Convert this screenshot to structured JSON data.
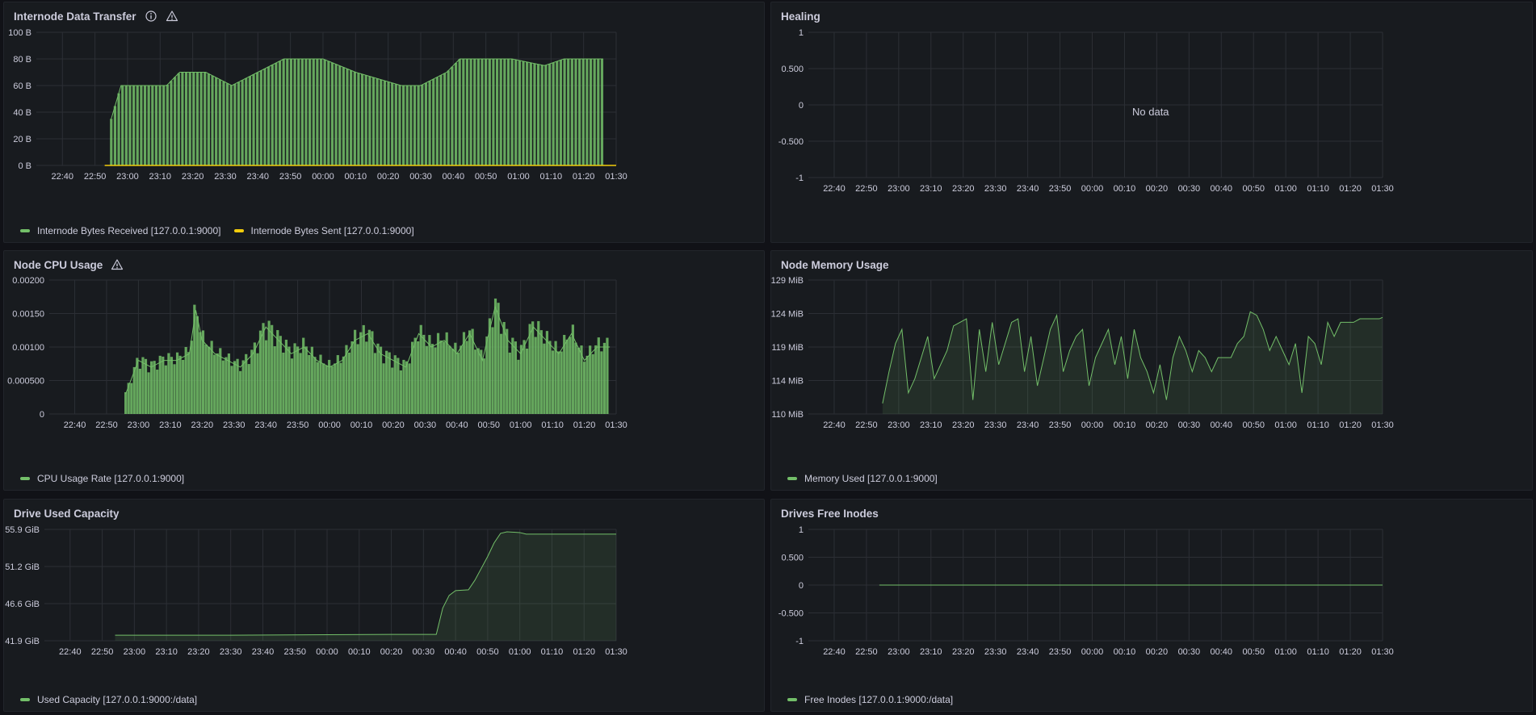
{
  "colors": {
    "received": "#73bf69",
    "sent": "#f2cc0c",
    "grid": "#2c2f35",
    "text": "#ccccdc"
  },
  "time_ticks": [
    "22:40",
    "22:50",
    "23:00",
    "23:10",
    "23:20",
    "23:30",
    "23:40",
    "23:50",
    "00:00",
    "00:10",
    "00:20",
    "00:30",
    "00:40",
    "00:50",
    "01:00",
    "01:10",
    "01:20",
    "01:30"
  ],
  "panels": {
    "transfer": {
      "title": "Internode Data Transfer",
      "icons": [
        "info-icon",
        "warning-icon"
      ],
      "legend": [
        "Internode Bytes Received [127.0.0.1:9000]",
        "Internode Bytes Sent [127.0.0.1:9000]"
      ]
    },
    "healing": {
      "title": "Healing",
      "no_data": "No data"
    },
    "cpu": {
      "title": "Node CPU Usage",
      "icons": [
        "warning-icon"
      ],
      "legend": [
        "CPU Usage Rate [127.0.0.1:9000]"
      ]
    },
    "memory": {
      "title": "Node Memory Usage",
      "legend": [
        "Memory Used [127.0.0.1:9000]"
      ]
    },
    "drive": {
      "title": "Drive Used Capacity",
      "legend": [
        "Used Capacity [127.0.0.1:9000:/data]"
      ]
    },
    "inodes": {
      "title": "Drives Free Inodes",
      "legend": [
        "Free Inodes [127.0.0.1:9000:/data]"
      ]
    }
  },
  "chart_data": [
    {
      "id": "transfer",
      "type": "bar",
      "title": "Internode Data Transfer",
      "x_unit": "minutes after 22:40",
      "ylim": [
        0,
        100
      ],
      "y_ticks": [
        "0 B",
        "20 B",
        "40 B",
        "60 B",
        "80 B",
        "100 B"
      ],
      "series": [
        {
          "name": "Internode Bytes Received [127.0.0.1:9000]",
          "x": [
            15,
            18,
            26,
            32,
            36,
            40,
            44,
            52,
            60,
            68,
            80,
            90,
            104,
            110,
            118,
            122,
            130,
            138,
            148,
            154,
            160,
            166
          ],
          "values": [
            35,
            60,
            60,
            60,
            70,
            70,
            70,
            60,
            70,
            80,
            80,
            70,
            60,
            60,
            70,
            80,
            80,
            80,
            75,
            80,
            80,
            80
          ]
        },
        {
          "name": "Internode Bytes Sent [127.0.0.1:9000]",
          "x": [
            13,
            170
          ],
          "values": [
            0,
            0
          ]
        }
      ],
      "grid": true
    },
    {
      "id": "healing",
      "type": "line",
      "title": "Healing",
      "ylim": [
        -1,
        1
      ],
      "y_ticks": [
        "-1",
        "-0.500",
        "0",
        "0.500",
        "1"
      ],
      "series": [],
      "grid": true
    },
    {
      "id": "cpu",
      "type": "bar",
      "title": "Node CPU Usage",
      "x_unit": "minutes after 22:40",
      "ylim": [
        0,
        0.002
      ],
      "y_ticks": [
        "0",
        "0.000500",
        "0.00100",
        "0.00150",
        "0.00200"
      ],
      "series": [
        {
          "name": "CPU Usage Rate [127.0.0.1:9000]",
          "x": [
            16,
            20,
            24,
            28,
            32,
            36,
            38,
            40,
            44,
            48,
            52,
            56,
            60,
            64,
            68,
            72,
            76,
            80,
            84,
            88,
            92,
            96,
            100,
            104,
            108,
            112,
            116,
            120,
            124,
            128,
            132,
            136,
            140,
            144,
            148,
            152,
            156,
            160,
            164,
            168
          ],
          "values": [
            0.0003,
            0.0008,
            0.0007,
            0.0008,
            0.0008,
            0.0009,
            0.00155,
            0.0011,
            0.0009,
            0.0008,
            0.0007,
            0.0009,
            0.0013,
            0.0011,
            0.0009,
            0.001,
            0.0008,
            0.0007,
            0.0008,
            0.0011,
            0.0012,
            0.0009,
            0.0008,
            0.0007,
            0.0012,
            0.001,
            0.0011,
            0.0009,
            0.0012,
            0.0008,
            0.0016,
            0.0011,
            0.0009,
            0.0013,
            0.0011,
            0.0009,
            0.0012,
            0.0008,
            0.001,
            0.001
          ]
        }
      ],
      "grid": true
    },
    {
      "id": "memory",
      "type": "area",
      "title": "Node Memory Usage",
      "x_unit": "minutes after 22:40",
      "ylim": [
        110,
        129
      ],
      "y_ticks": [
        "110 MiB",
        "114 MiB",
        "119 MiB",
        "124 MiB",
        "129 MiB"
      ],
      "series": [
        {
          "name": "Memory Used [127.0.0.1:9000]",
          "x": [
            15,
            17,
            19,
            21,
            23,
            25,
            27,
            29,
            31,
            33,
            35,
            37,
            39,
            41,
            43,
            45,
            47,
            49,
            51,
            53,
            55,
            57,
            59,
            61,
            63,
            65,
            67,
            69,
            71,
            73,
            75,
            77,
            79,
            81,
            83,
            85,
            87,
            89,
            91,
            93,
            95,
            97,
            99,
            101,
            103,
            105,
            107,
            109,
            111,
            113,
            115,
            117,
            119,
            121,
            123,
            125,
            127,
            129,
            131,
            133,
            135,
            137,
            139,
            141,
            143,
            145,
            147,
            149,
            151,
            153,
            155,
            157,
            159,
            161,
            163,
            165,
            167,
            169,
            170
          ],
          "values": [
            111.5,
            116,
            120,
            122,
            113,
            115,
            118,
            121,
            115,
            117,
            119,
            122.5,
            123,
            123.5,
            112,
            122,
            116,
            123,
            117,
            120,
            123,
            123.5,
            116,
            121,
            114,
            118,
            122,
            124,
            116,
            119,
            121,
            122,
            114,
            118,
            120,
            122,
            117,
            121,
            115,
            122,
            118,
            116,
            113,
            117,
            112,
            118,
            121,
            119,
            116,
            119,
            118,
            116,
            118,
            118,
            118,
            120,
            121,
            124.5,
            124,
            122,
            119,
            121,
            119,
            117,
            120,
            113,
            121,
            120,
            117,
            123,
            121,
            123,
            123,
            123,
            123.5,
            123.5,
            123.5,
            123.5,
            123.7
          ]
        }
      ],
      "grid": true
    },
    {
      "id": "drive",
      "type": "area",
      "title": "Drive Used Capacity",
      "x_unit": "minutes after 22:40",
      "ylim": [
        41.9,
        55.9
      ],
      "y_ticks": [
        "41.9 GiB",
        "46.6 GiB",
        "51.2 GiB",
        "55.9 GiB"
      ],
      "series": [
        {
          "name": "Used Capacity [127.0.0.1:9000:/data]",
          "x": [
            14,
            50,
            100,
            114,
            116,
            118,
            120,
            124,
            126,
            128,
            130,
            132,
            134,
            136,
            140,
            142,
            146,
            150,
            170
          ],
          "values": [
            42.6,
            42.6,
            42.7,
            42.7,
            46,
            47.6,
            48.2,
            48.3,
            49.5,
            51,
            52.5,
            54.2,
            55.4,
            55.6,
            55.5,
            55.3,
            55.3,
            55.3,
            55.3
          ]
        }
      ],
      "grid": true
    },
    {
      "id": "inodes",
      "type": "line",
      "title": "Drives Free Inodes",
      "x_unit": "minutes after 22:40",
      "ylim": [
        -1,
        1
      ],
      "y_ticks": [
        "-1",
        "-0.500",
        "0",
        "0.500",
        "1"
      ],
      "series": [
        {
          "name": "Free Inodes [127.0.0.1:9000:/data]",
          "x": [
            14,
            170
          ],
          "values": [
            0,
            0
          ]
        }
      ],
      "grid": true
    }
  ]
}
